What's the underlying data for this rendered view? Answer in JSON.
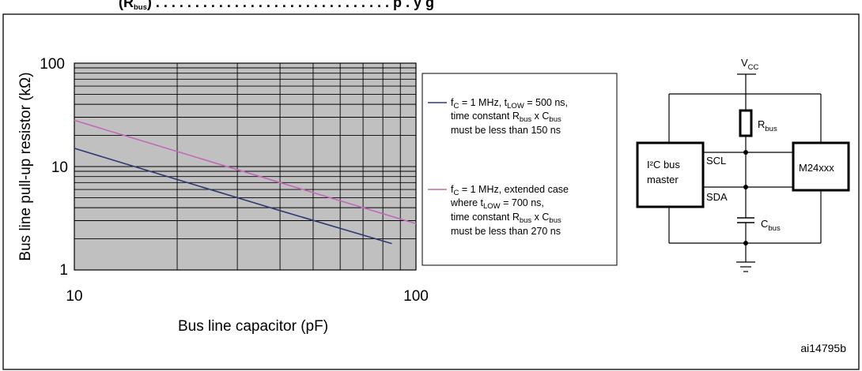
{
  "header_fragment": "(Rbus) . . . . . . . . . . . . . . . . . . . . . . . . . . .  p  .  . y  g",
  "figure_id": "ai14795b",
  "colors": {
    "plot_background": "#c0c0c0",
    "series_navy": "#2e3a73",
    "series_pink": "#c16ab8",
    "grid": "#000000"
  },
  "chart_data": {
    "type": "line",
    "xscale": "log",
    "yscale": "log",
    "xlim": [
      10,
      100
    ],
    "ylim": [
      1,
      100
    ],
    "grid": true,
    "xlabel": "Bus line capacitor (pF)",
    "ylabel": "Bus line pull-up resistor (kΩ)",
    "x_ticks": [
      "10",
      "100"
    ],
    "y_ticks": [
      "1",
      "10",
      "100"
    ],
    "legend_position": "right",
    "series": [
      {
        "legend": {
          "line1": {
            "a": "f",
            "a_sub": "C",
            "b": " = 1 MHz, t",
            "b_sub": "LOW",
            "c": " = 500 ns,"
          },
          "line2": {
            "a": "time constant R",
            "a_sub": "bus",
            "b": " x C",
            "b_sub": "bus"
          },
          "line3": "must be less than 150 ns"
        },
        "color_key": "series_navy",
        "x": [
          10,
          20,
          40,
          85
        ],
        "y": [
          15,
          7.5,
          3.75,
          1.8
        ]
      },
      {
        "legend": {
          "line1": {
            "a": "f",
            "a_sub": "C",
            "b": " = 1 MHz, extended case"
          },
          "line2": {
            "a": "where t",
            "a_sub": "LOW",
            "b": " = 700 ns,"
          },
          "line3": {
            "a": "time constant R",
            "a_sub": "bus",
            "b": " x C",
            "b_sub": "bus"
          },
          "line4": "must be less than 270 ns"
        },
        "color_key": "series_pink",
        "x": [
          10,
          20,
          40,
          100
        ],
        "y": [
          28,
          14,
          7,
          2.8
        ]
      }
    ]
  },
  "circuit": {
    "vcc": {
      "main": "V",
      "sub": "CC"
    },
    "rbus": {
      "main": "R",
      "sub": "bus"
    },
    "cbus": {
      "main": "C",
      "sub": "bus"
    },
    "master_line1": "I²C bus",
    "master_line2": "master",
    "slave": "M24xxx",
    "scl": "SCL",
    "sda": "SDA"
  }
}
